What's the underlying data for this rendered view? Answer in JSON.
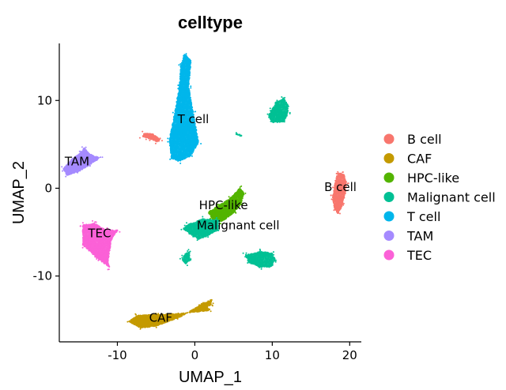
{
  "chart_data": {
    "type": "scatter",
    "title": "celltype",
    "xlabel": "UMAP_1",
    "ylabel": "UMAP_2",
    "xlim": [
      -17.5,
      21.5
    ],
    "ylim": [
      -17.5,
      16.5
    ],
    "x_ticks": [
      -10,
      0,
      10,
      20
    ],
    "y_ticks": [
      -10,
      0,
      10
    ],
    "grid": false,
    "legend_position": "right",
    "series": [
      {
        "name": "B cell",
        "color": "#F8766D",
        "clusters": [
          {
            "points": [
              [
                18.5,
                1.8
              ],
              [
                19.3,
                1.6
              ],
              [
                19.6,
                0.5
              ],
              [
                19.4,
                -0.8
              ],
              [
                19.0,
                -2.0
              ],
              [
                18.5,
                -2.9
              ],
              [
                18.0,
                -2.3
              ],
              [
                17.8,
                -1.0
              ],
              [
                18.0,
                0.2
              ],
              [
                18.2,
                1.0
              ]
            ]
          },
          {
            "points": [
              [
                -6.5,
                6.3
              ],
              [
                -5.5,
                6.2
              ],
              [
                -4.5,
                5.6
              ],
              [
                -4.8,
                5.3
              ],
              [
                -6.0,
                5.7
              ],
              [
                -6.8,
                5.9
              ]
            ]
          }
        ]
      },
      {
        "name": "CAF",
        "color": "#C49A00",
        "clusters": [
          {
            "points": [
              [
                -7.5,
                -14.5
              ],
              [
                -5,
                -14.4
              ],
              [
                -2,
                -14.3
              ],
              [
                2,
                -13.9
              ],
              [
                1,
                -13.2
              ],
              [
                -2,
                -14.7
              ],
              [
                -5,
                -15.7
              ],
              [
                -7,
                -15.9
              ],
              [
                -8.5,
                -15.2
              ]
            ]
          },
          {
            "points": [
              [
                0.8,
                -13.2
              ],
              [
                1.8,
                -12.9
              ],
              [
                2.2,
                -12.7
              ],
              [
                2.1,
                -13.3
              ],
              [
                1.3,
                -13.6
              ]
            ]
          }
        ]
      },
      {
        "name": "HPC-like",
        "color": "#53B400",
        "clusters": [
          {
            "points": [
              [
                3,
                -2
              ],
              [
                4.5,
                -1.2
              ],
              [
                5.8,
                0
              ],
              [
                6.3,
                -0.5
              ],
              [
                6.0,
                -1.8
              ],
              [
                5.0,
                -2.8
              ],
              [
                3.5,
                -3.8
              ],
              [
                2.2,
                -3.5
              ],
              [
                1.8,
                -2.7
              ]
            ]
          }
        ]
      },
      {
        "name": "Malignant cell",
        "color": "#00C094",
        "clusters": [
          {
            "points": [
              [
                10.5,
                9.8
              ],
              [
                11.5,
                10.3
              ],
              [
                12.0,
                9.5
              ],
              [
                12.0,
                8.5
              ],
              [
                11.5,
                7.5
              ],
              [
                10.0,
                7.5
              ],
              [
                9.5,
                8.3
              ],
              [
                10.0,
                9.0
              ]
            ]
          },
          {
            "points": [
              [
                6.5,
                -7.6
              ],
              [
                8.5,
                -7.2
              ],
              [
                10.0,
                -7.4
              ],
              [
                10.4,
                -8.2
              ],
              [
                9.8,
                -9.0
              ],
              [
                8.5,
                -9.0
              ],
              [
                7.0,
                -8.5
              ]
            ]
          },
          {
            "points": [
              [
                -1,
                -4.2
              ],
              [
                1,
                -3.5
              ],
              [
                3,
                -3.6
              ],
              [
                3,
                -4.8
              ],
              [
                1.5,
                -5.5
              ],
              [
                0.5,
                -5.8
              ],
              [
                -0.5,
                -5.3
              ],
              [
                -1.5,
                -4.6
              ]
            ]
          },
          {
            "points": [
              [
                -1.4,
                -7.6
              ],
              [
                -0.7,
                -7.2
              ],
              [
                -0.6,
                -8.2
              ],
              [
                -1.2,
                -8.6
              ],
              [
                -1.6,
                -8.2
              ]
            ]
          },
          {
            "points": [
              [
                5.5,
                6.2
              ],
              [
                5.9,
                6.0
              ]
            ]
          }
        ]
      },
      {
        "name": "T cell",
        "color": "#00B6EB",
        "clusters": [
          {
            "points": [
              [
                -1.3,
                15.3
              ],
              [
                -0.5,
                14.5
              ],
              [
                -0.8,
                11.5
              ],
              [
                -0.2,
                8.5
              ],
              [
                0.5,
                5.2
              ],
              [
                -0.6,
                3.6
              ],
              [
                -2.0,
                3.1
              ],
              [
                -3.0,
                3.4
              ],
              [
                -3.3,
                5.5
              ],
              [
                -2.6,
                8.5
              ],
              [
                -2.0,
                11.5
              ],
              [
                -1.8,
                14.0
              ]
            ]
          }
        ]
      },
      {
        "name": "TAM",
        "color": "#A58AFF",
        "clusters": [
          {
            "points": [
              [
                -17.0,
                2.2
              ],
              [
                -16.0,
                3.2
              ],
              [
                -14.8,
                4.0
              ],
              [
                -14.3,
                4.6
              ],
              [
                -13.5,
                3.8
              ],
              [
                -12.2,
                3.5
              ],
              [
                -13.5,
                2.7
              ],
              [
                -15.0,
                1.9
              ],
              [
                -16.5,
                1.5
              ]
            ]
          }
        ]
      },
      {
        "name": "TEC",
        "color": "#FB61D7",
        "clusters": [
          {
            "points": [
              [
                -14.5,
                -4.2
              ],
              [
                -13.0,
                -4.0
              ],
              [
                -11.5,
                -4.7
              ],
              [
                -10.0,
                -4.8
              ],
              [
                -10.8,
                -6.0
              ],
              [
                -11.2,
                -8.2
              ],
              [
                -11.0,
                -9.0
              ],
              [
                -12.6,
                -8.0
              ],
              [
                -14.4,
                -6.5
              ]
            ]
          }
        ]
      }
    ],
    "annotations": [
      {
        "text": "T cell",
        "x": -0.2,
        "y": 7.4
      },
      {
        "text": "TAM",
        "x": -15.2,
        "y": 2.6
      },
      {
        "text": "B cell",
        "x": 18.8,
        "y": -0.3
      },
      {
        "text": "HPC-like",
        "x": 3.7,
        "y": -2.4
      },
      {
        "text": "Malignant cell",
        "x": 5.6,
        "y": -4.7
      },
      {
        "text": "TEC",
        "x": -12.3,
        "y": -5.6
      },
      {
        "text": "CAF",
        "x": -4.4,
        "y": -15.2
      }
    ]
  }
}
